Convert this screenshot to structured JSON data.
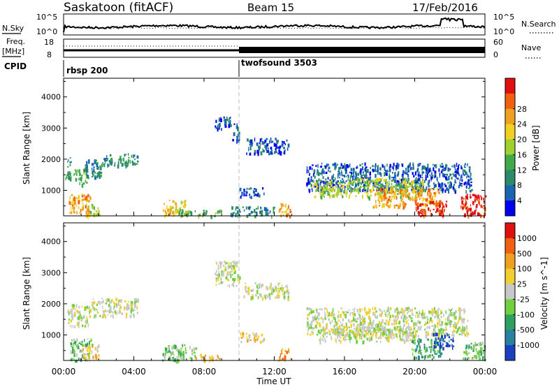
{
  "header": {
    "station": "Saskatoon (fitACF)",
    "beam": "Beam 15",
    "date": "17/Feb/2016"
  },
  "top_panel": {
    "left_label": "N.Sky",
    "left_ticks": [
      "10^5",
      "10^0"
    ],
    "right_label": "N.Search",
    "right_ticks": [
      "10^5",
      "10^0"
    ]
  },
  "freq_panel": {
    "left_label_line1": "Freq.",
    "left_label_line2": "[MHz]",
    "left_ticks": [
      "18",
      "8"
    ],
    "right_label": "Nave",
    "right_ticks": [
      "60",
      "0"
    ]
  },
  "cpid_panel": {
    "label": "CPID",
    "modes": [
      {
        "name": "rbsp 200",
        "start_hour": 0
      },
      {
        "name": "twofsound 3503",
        "start_hour": 10.0
      }
    ]
  },
  "time_axis": {
    "label": "Time UT",
    "ticks": [
      "00:00",
      "04:00",
      "08:00",
      "12:00",
      "16:00",
      "20:00",
      "00:00"
    ]
  },
  "chart_data": [
    {
      "type": "heatmap",
      "title": "",
      "xlabel": "",
      "ylabel": "Slant Range [km]",
      "xlim": [
        0,
        24
      ],
      "ylim": [
        180,
        4600
      ],
      "yticks": [
        "1000",
        "2000",
        "3000",
        "4000"
      ],
      "colorbar": {
        "label": "Power [dB]",
        "ticks": [
          "4",
          "8",
          "12",
          "16",
          "20",
          "24",
          "28"
        ],
        "colors": [
          "#0000f0",
          "#1a64b4",
          "#2a8a6a",
          "#3faa4a",
          "#a0d030",
          "#f0d020",
          "#f0a020",
          "#f06010",
          "#e01010"
        ]
      },
      "patches": [
        {
          "t": [
            0.1,
            0.4
          ],
          "r": [
            1300,
            2100
          ],
          "level": 2
        },
        {
          "t": [
            0.5,
            1.3
          ],
          "r": [
            1200,
            1700
          ],
          "level": 3
        },
        {
          "t": [
            1.2,
            2.2
          ],
          "r": [
            1400,
            2000
          ],
          "level": 2
        },
        {
          "t": [
            2.2,
            4.2
          ],
          "r": [
            1800,
            2200
          ],
          "level": 2
        },
        {
          "t": [
            0.3,
            1.5
          ],
          "r": [
            200,
            900
          ],
          "level": 6
        },
        {
          "t": [
            1.3,
            2.1
          ],
          "r": [
            200,
            600
          ],
          "level": 4
        },
        {
          "t": [
            5.6,
            7.0
          ],
          "r": [
            200,
            700
          ],
          "level": 5
        },
        {
          "t": [
            6.5,
            9.0
          ],
          "r": [
            200,
            400
          ],
          "level": 3
        },
        {
          "t": [
            8.6,
            9.7
          ],
          "r": [
            3000,
            3400
          ],
          "level": 1
        },
        {
          "t": [
            9.6,
            10.0
          ],
          "r": [
            2600,
            3200
          ],
          "level": 1
        },
        {
          "t": [
            10.0,
            11.4
          ],
          "r": [
            800,
            1100
          ],
          "level": 1
        },
        {
          "t": [
            9.5,
            12.0
          ],
          "r": [
            200,
            500
          ],
          "level": 2
        },
        {
          "t": [
            12.2,
            12.9
          ],
          "r": [
            200,
            600
          ],
          "level": 6
        },
        {
          "t": [
            10.4,
            12.8
          ],
          "r": [
            2200,
            2700
          ],
          "level": 1
        },
        {
          "t": [
            13.8,
            23.2
          ],
          "r": [
            1000,
            1900
          ],
          "level": 1
        },
        {
          "t": [
            14.2,
            20.5
          ],
          "r": [
            800,
            1400
          ],
          "level": 4
        },
        {
          "t": [
            17.5,
            21.4
          ],
          "r": [
            500,
            1100
          ],
          "level": 6
        },
        {
          "t": [
            20.0,
            21.8
          ],
          "r": [
            200,
            700
          ],
          "level": 8
        },
        {
          "t": [
            22.6,
            24.0
          ],
          "r": [
            200,
            900
          ],
          "level": 8
        }
      ]
    },
    {
      "type": "heatmap",
      "title": "",
      "xlabel": "Time UT",
      "ylabel": "Slant Range [km]",
      "xlim": [
        0,
        24
      ],
      "ylim": [
        180,
        4600
      ],
      "yticks": [
        "1000",
        "2000",
        "3000",
        "4000"
      ],
      "colorbar": {
        "label": "Velocity [m s^-1]",
        "ticks": [
          "1000",
          "500",
          "100",
          "25",
          "-25",
          "-100",
          "-500",
          "-1000"
        ],
        "colors": [
          "#1a40c0",
          "#2a80a0",
          "#30a060",
          "#70d040",
          "#c8c8c8",
          "#f0d030",
          "#f0a020",
          "#f06010",
          "#e01010"
        ]
      },
      "patches": [
        {
          "t": [
            0.2,
            1.5
          ],
          "r": [
            1300,
            2000
          ],
          "level": 4
        },
        {
          "t": [
            1.5,
            4.2
          ],
          "r": [
            1600,
            2200
          ],
          "level": 4
        },
        {
          "t": [
            0.3,
            1.6
          ],
          "r": [
            200,
            900
          ],
          "level": 3
        },
        {
          "t": [
            1.0,
            2.0
          ],
          "r": [
            300,
            700
          ],
          "level": 5
        },
        {
          "t": [
            5.6,
            7.5
          ],
          "r": [
            200,
            700
          ],
          "level": 3
        },
        {
          "t": [
            7.5,
            9.0
          ],
          "r": [
            200,
            400
          ],
          "level": 5
        },
        {
          "t": [
            8.6,
            10.0
          ],
          "r": [
            2600,
            3400
          ],
          "level": 4
        },
        {
          "t": [
            10.2,
            12.8
          ],
          "r": [
            2200,
            2700
          ],
          "level": 4
        },
        {
          "t": [
            10.0,
            11.4
          ],
          "r": [
            800,
            1100
          ],
          "level": 5
        },
        {
          "t": [
            12.2,
            12.9
          ],
          "r": [
            200,
            600
          ],
          "level": 6
        },
        {
          "t": [
            13.8,
            23.0
          ],
          "r": [
            1000,
            1900
          ],
          "level": 4
        },
        {
          "t": [
            14.5,
            20.0
          ],
          "r": [
            800,
            1300
          ],
          "level": 4
        },
        {
          "t": [
            19.8,
            21.5
          ],
          "r": [
            300,
            900
          ],
          "level": 2
        },
        {
          "t": [
            21.0,
            22.2
          ],
          "r": [
            600,
            1100
          ],
          "level": 0
        },
        {
          "t": [
            22.7,
            24.0
          ],
          "r": [
            200,
            800
          ],
          "level": 3
        }
      ]
    }
  ]
}
